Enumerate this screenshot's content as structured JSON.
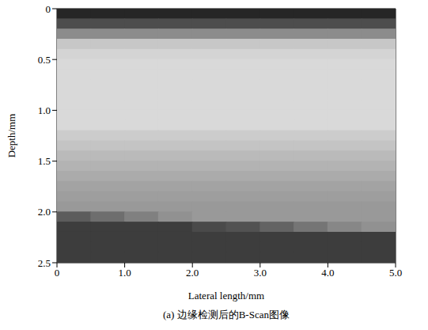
{
  "chart_data": {
    "type": "heatmap",
    "title": "(a) 边缘检测后的B-Scan图像",
    "x_label": "Lateral length/mm",
    "y_label": "Depth/mm",
    "xlim": [
      0,
      5
    ],
    "ylim": [
      0,
      2.5
    ],
    "xticks": [
      0,
      {
        "value": 1,
        "label": "1.0"
      },
      {
        "value": 2,
        "label": "2.0"
      },
      {
        "value": 3,
        "label": "3.0"
      },
      {
        "value": 4,
        "label": "4.0"
      },
      {
        "value": 5,
        "label": "5.0"
      }
    ],
    "yticks": [
      0,
      0.5,
      {
        "value": 1,
        "label": "1.0"
      },
      1.5,
      {
        "value": 2,
        "label": "2.0"
      },
      2.5
    ],
    "x": [
      0.25,
      0.75,
      1.25,
      1.75,
      2.25,
      2.75,
      3.25,
      3.75,
      4.25,
      4.75
    ],
    "y": [
      0.05,
      0.15,
      0.25,
      0.35,
      0.45,
      0.55,
      0.65,
      0.75,
      0.85,
      0.95,
      1.05,
      1.15,
      1.25,
      1.35,
      1.45,
      1.55,
      1.65,
      1.75,
      1.85,
      1.95,
      2.05,
      2.15,
      2.25,
      2.35,
      2.45
    ],
    "cells": [
      [
        0.15,
        0.15,
        0.15,
        0.15,
        0.15,
        0.15,
        0.15,
        0.15,
        0.15,
        0.15
      ],
      [
        0.3,
        0.3,
        0.3,
        0.3,
        0.3,
        0.3,
        0.3,
        0.3,
        0.3,
        0.3
      ],
      [
        0.55,
        0.55,
        0.55,
        0.55,
        0.55,
        0.55,
        0.55,
        0.55,
        0.55,
        0.55
      ],
      [
        0.78,
        0.78,
        0.78,
        0.78,
        0.78,
        0.78,
        0.78,
        0.78,
        0.78,
        0.78
      ],
      [
        0.83,
        0.83,
        0.83,
        0.83,
        0.83,
        0.83,
        0.83,
        0.83,
        0.83,
        0.83
      ],
      [
        0.85,
        0.85,
        0.85,
        0.85,
        0.85,
        0.85,
        0.85,
        0.85,
        0.85,
        0.85
      ],
      [
        0.85,
        0.85,
        0.85,
        0.85,
        0.85,
        0.85,
        0.85,
        0.85,
        0.85,
        0.85
      ],
      [
        0.85,
        0.85,
        0.85,
        0.85,
        0.85,
        0.85,
        0.85,
        0.85,
        0.85,
        0.85
      ],
      [
        0.85,
        0.85,
        0.85,
        0.85,
        0.85,
        0.85,
        0.85,
        0.85,
        0.85,
        0.85
      ],
      [
        0.85,
        0.85,
        0.85,
        0.85,
        0.85,
        0.85,
        0.85,
        0.85,
        0.85,
        0.85
      ],
      [
        0.85,
        0.85,
        0.85,
        0.85,
        0.85,
        0.85,
        0.85,
        0.85,
        0.85,
        0.85
      ],
      [
        0.85,
        0.85,
        0.85,
        0.85,
        0.85,
        0.85,
        0.85,
        0.85,
        0.85,
        0.85
      ],
      [
        0.8,
        0.8,
        0.8,
        0.8,
        0.8,
        0.8,
        0.8,
        0.8,
        0.8,
        0.8
      ],
      [
        0.77,
        0.77,
        0.77,
        0.77,
        0.77,
        0.77,
        0.77,
        0.77,
        0.77,
        0.77
      ],
      [
        0.73,
        0.73,
        0.73,
        0.73,
        0.73,
        0.73,
        0.73,
        0.73,
        0.73,
        0.73
      ],
      [
        0.7,
        0.7,
        0.7,
        0.7,
        0.7,
        0.7,
        0.7,
        0.7,
        0.7,
        0.7
      ],
      [
        0.67,
        0.67,
        0.67,
        0.67,
        0.67,
        0.67,
        0.67,
        0.67,
        0.67,
        0.67
      ],
      [
        0.64,
        0.64,
        0.64,
        0.64,
        0.64,
        0.64,
        0.64,
        0.64,
        0.64,
        0.64
      ],
      [
        0.62,
        0.62,
        0.62,
        0.62,
        0.62,
        0.62,
        0.62,
        0.62,
        0.62,
        0.62
      ],
      [
        0.6,
        0.6,
        0.6,
        0.6,
        0.6,
        0.6,
        0.6,
        0.6,
        0.6,
        0.6
      ],
      [
        0.36,
        0.43,
        0.5,
        0.57,
        0.6,
        0.6,
        0.6,
        0.6,
        0.6,
        0.6
      ],
      [
        0.24,
        0.24,
        0.24,
        0.24,
        0.29,
        0.32,
        0.39,
        0.46,
        0.53,
        0.57
      ],
      [
        0.24,
        0.24,
        0.24,
        0.24,
        0.24,
        0.24,
        0.24,
        0.24,
        0.24,
        0.24
      ],
      [
        0.24,
        0.24,
        0.24,
        0.24,
        0.24,
        0.24,
        0.24,
        0.24,
        0.24,
        0.24
      ],
      [
        0.24,
        0.24,
        0.24,
        0.24,
        0.24,
        0.24,
        0.24,
        0.24,
        0.24,
        0.24
      ]
    ]
  }
}
